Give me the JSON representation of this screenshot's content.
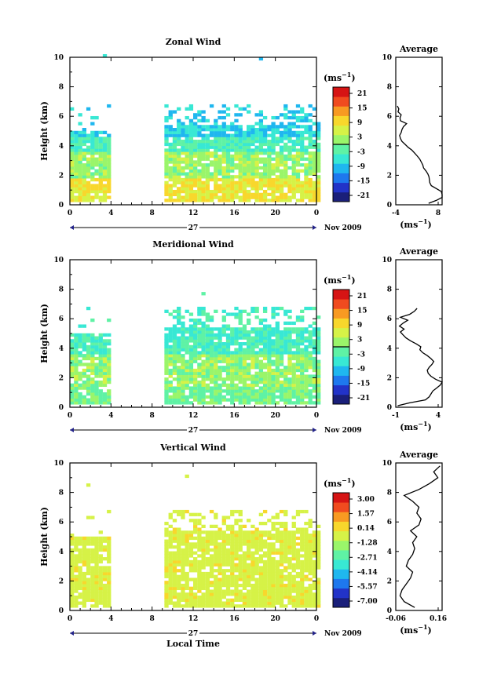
{
  "chart_data": [
    {
      "type": "heatmap",
      "title": "Zonal Wind",
      "ylabel": "Height (km)",
      "xlabel": "",
      "x_ticks": [
        "0",
        "4",
        "8",
        "12",
        "16",
        "20",
        "0"
      ],
      "y_ticks": [
        "0",
        "2",
        "4",
        "6",
        "8",
        "10"
      ],
      "ylim": [
        0,
        10
      ],
      "xlim": [
        0,
        24
      ],
      "date_label": "27",
      "month_label": "Nov 2009",
      "colorbar_unit": "(ms",
      "colorbar_unit_exp": "−1",
      "colorbar_ticks": [
        "21",
        "15",
        "9",
        "3",
        "-3",
        "-9",
        "-15",
        "-21"
      ],
      "gap_hours": [
        3.8,
        9.1
      ],
      "profile": {
        "title": "Average",
        "xlabel": "(ms",
        "xlabel_exp": "−1",
        "xticks": [
          "-4",
          "8"
        ],
        "xlim": [
          -4,
          8
        ],
        "heights": [
          0.1,
          0.3,
          0.5,
          0.7,
          0.9,
          1.1,
          1.3,
          1.5,
          1.7,
          1.9,
          2.1,
          2.3,
          2.5,
          2.7,
          2.9,
          3.1,
          3.3,
          3.5,
          3.7,
          3.9,
          4.1,
          4.3,
          4.5,
          4.7,
          4.9,
          5.1,
          5.3,
          5.5,
          5.7,
          5.9,
          6.1,
          6.3,
          6.5,
          6.7
        ],
        "values": [
          4.5,
          6.5,
          8.0,
          8.2,
          7.8,
          6.5,
          5.2,
          4.8,
          4.7,
          4.6,
          4.3,
          3.8,
          3.2,
          3.0,
          2.6,
          2.2,
          1.6,
          0.9,
          0.2,
          -0.8,
          -1.6,
          -2.4,
          -2.8,
          -3.0,
          -2.6,
          -2.4,
          -2.0,
          -1.2,
          -2.8,
          -2.9,
          -2.6,
          -3.4,
          -3.2,
          -3.6
        ]
      }
    },
    {
      "type": "heatmap",
      "title": "Meridional Wind",
      "ylabel": "Height (km)",
      "xlabel": "",
      "x_ticks": [
        "0",
        "4",
        "8",
        "12",
        "16",
        "20",
        "0"
      ],
      "y_ticks": [
        "0",
        "2",
        "4",
        "6",
        "8",
        "10"
      ],
      "ylim": [
        0,
        10
      ],
      "xlim": [
        0,
        24
      ],
      "date_label": "27",
      "month_label": "Nov 2009",
      "colorbar_unit": "(ms",
      "colorbar_unit_exp": "−1",
      "colorbar_ticks": [
        "21",
        "15",
        "9",
        "3",
        "-3",
        "-9",
        "-15",
        "-21"
      ],
      "gap_hours": [
        3.8,
        9.1
      ],
      "profile": {
        "title": "Average",
        "xlabel": "(ms",
        "xlabel_exp": "−1",
        "xticks": [
          "-1",
          "4"
        ],
        "xlim": [
          -1,
          4
        ],
        "heights": [
          0.1,
          0.3,
          0.5,
          0.7,
          0.9,
          1.1,
          1.3,
          1.5,
          1.7,
          1.9,
          2.1,
          2.3,
          2.5,
          2.7,
          2.9,
          3.1,
          3.3,
          3.5,
          3.7,
          3.9,
          4.1,
          4.3,
          4.5,
          4.7,
          4.9,
          5.1,
          5.3,
          5.5,
          5.7,
          5.9,
          6.1,
          6.3,
          6.5,
          6.7
        ],
        "values": [
          -0.8,
          0.5,
          2.2,
          2.6,
          2.8,
          3.0,
          3.4,
          3.8,
          4.0,
          3.3,
          2.8,
          2.5,
          2.4,
          2.6,
          2.9,
          3.1,
          2.8,
          2.4,
          1.9,
          1.6,
          1.7,
          1.2,
          0.6,
          0.1,
          -0.2,
          -0.5,
          -0.1,
          -0.6,
          -0.2,
          0.3,
          -0.5,
          0.5,
          1.0,
          1.3
        ]
      }
    },
    {
      "type": "heatmap",
      "title": "Vertical Wind",
      "ylabel": "Height (km)",
      "xlabel": "Local Time",
      "x_ticks": [
        "0",
        "4",
        "8",
        "12",
        "16",
        "20",
        "0"
      ],
      "y_ticks": [
        "0",
        "2",
        "4",
        "6",
        "8",
        "10"
      ],
      "ylim": [
        0,
        10
      ],
      "xlim": [
        0,
        24
      ],
      "date_label": "27",
      "month_label": "Nov 2009",
      "colorbar_unit": "(ms",
      "colorbar_unit_exp": "−1",
      "colorbar_ticks": [
        "3.00",
        "1.57",
        "0.14",
        "-1.28",
        "-2.71",
        "-4.14",
        "-5.57",
        "-7.00"
      ],
      "gap_hours": [
        3.8,
        9.1
      ],
      "profile": {
        "title": "Average",
        "xlabel": "(ms",
        "xlabel_exp": "−1",
        "xticks": [
          "-0.06",
          "0.16"
        ],
        "xlim": [
          -0.06,
          0.16
        ],
        "heights": [
          0.2,
          0.6,
          1.0,
          1.4,
          1.8,
          2.2,
          2.6,
          3.0,
          3.4,
          3.8,
          4.2,
          4.6,
          5.0,
          5.4,
          5.8,
          6.2,
          6.6,
          7.0,
          7.4,
          7.8,
          8.2,
          8.6,
          9.0,
          9.4,
          9.8
        ],
        "values": [
          0.03,
          -0.02,
          -0.04,
          -0.03,
          -0.01,
          0.01,
          0.02,
          -0.01,
          0.0,
          0.02,
          0.03,
          0.02,
          0.04,
          0.01,
          0.05,
          0.06,
          0.04,
          0.05,
          0.02,
          -0.02,
          0.05,
          0.1,
          0.14,
          0.12,
          0.15
        ]
      }
    }
  ]
}
